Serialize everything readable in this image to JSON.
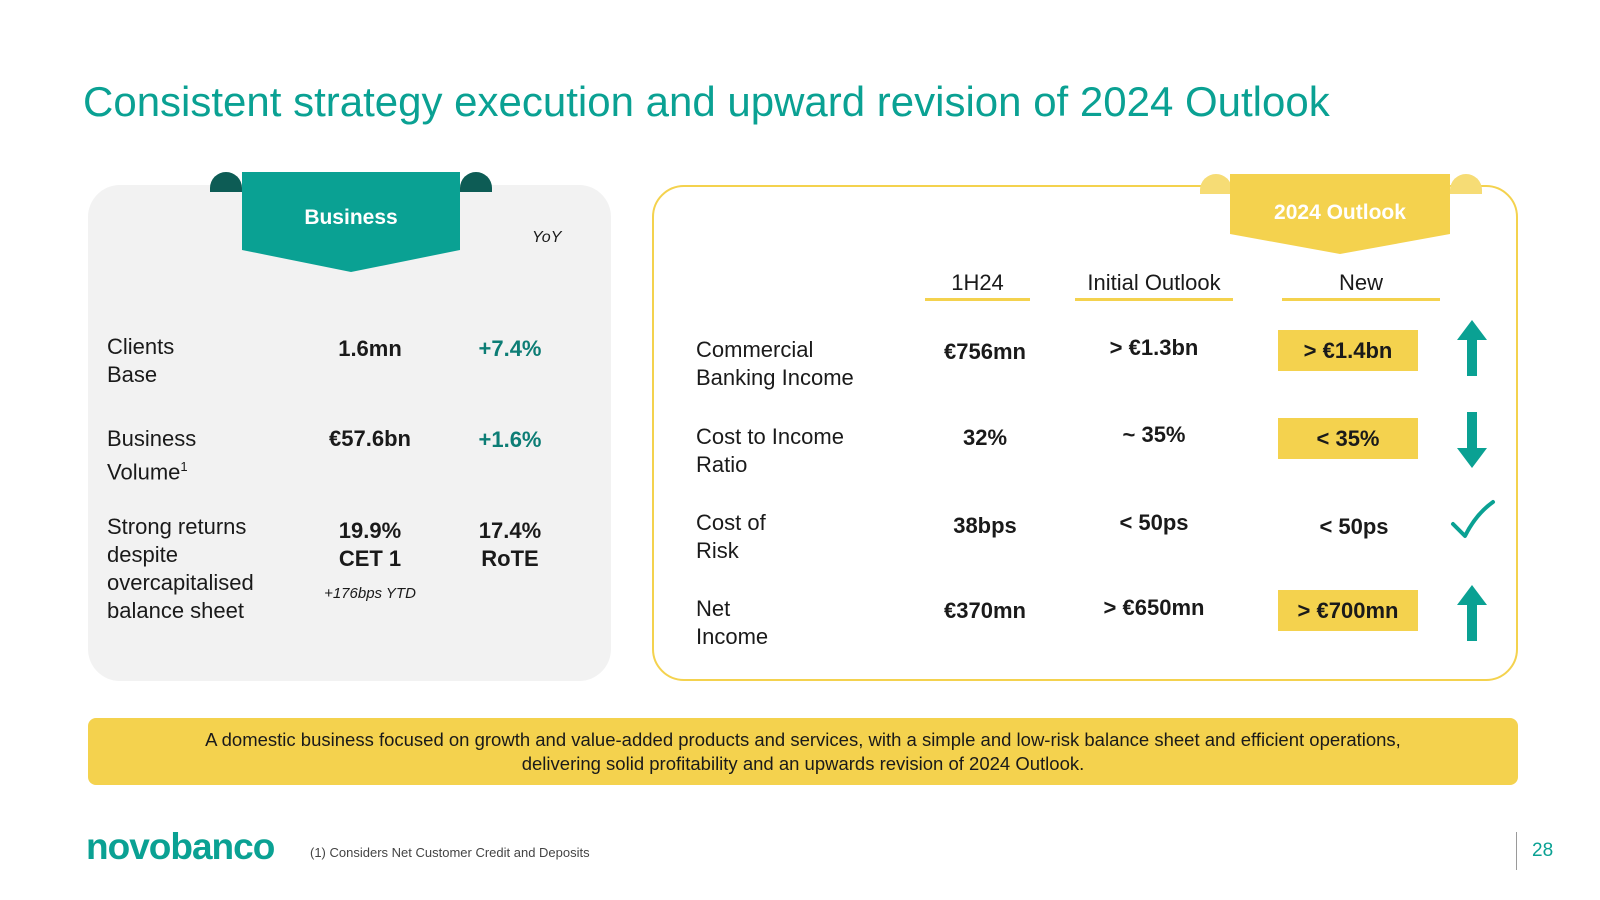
{
  "title": "Consistent strategy execution and upward revision of 2024 Outlook",
  "business": {
    "tab_label": "Business",
    "yoy_label": "YoY",
    "rows": [
      {
        "label_1": "Clients",
        "label_2": "Base",
        "value": "1.6mn",
        "yoy": "+7.4%"
      },
      {
        "label_1": "Business",
        "label_2": "Volume",
        "footnote_mark": "1",
        "value": "€57.6bn",
        "yoy": "+1.6%"
      },
      {
        "label_lines": [
          "Strong returns",
          "despite",
          "overcapitalised",
          "balance sheet"
        ],
        "value_1": "19.9%",
        "value_2": "CET 1",
        "value_sub": "+176bps YTD",
        "yoy_1": "17.4%",
        "yoy_2": "RoTE"
      }
    ]
  },
  "outlook": {
    "tab_label": "2024 Outlook",
    "columns": [
      "1H24",
      "Initial Outlook",
      "New"
    ],
    "rows": [
      {
        "label_1": "Commercial",
        "label_2": "Banking Income",
        "h1": "€756mn",
        "initial": "> €1.3bn",
        "new": "> €1.4bn",
        "highlighted": true,
        "icon": "arrow-up-icon"
      },
      {
        "label_1": "Cost to Income",
        "label_2": "Ratio",
        "h1": "32%",
        "initial": "~ 35%",
        "new": "< 35%",
        "highlighted": true,
        "icon": "arrow-down-icon"
      },
      {
        "label_1": "Cost of",
        "label_2": "Risk",
        "h1": "38bps",
        "initial": "< 50ps",
        "new": "< 50ps",
        "highlighted": false,
        "icon": "checkmark-icon"
      },
      {
        "label_1": "Net",
        "label_2": "Income",
        "h1": "€370mn",
        "initial": "> €650mn",
        "new": "> €700mn",
        "highlighted": true,
        "icon": "arrow-up-icon"
      }
    ]
  },
  "banner": {
    "line_1": "A domestic business focused on growth and value-added products and services, with a simple and low-risk balance sheet and efficient operations,",
    "line_2": "delivering solid profitability and an upwards revision of 2024 Outlook."
  },
  "footer": {
    "logo": "novobanco",
    "footnote": "(1) Considers Net Customer Credit and Deposits",
    "page_number": "28"
  },
  "colors": {
    "teal": "#0aa193",
    "dark_teal": "#0d5c55",
    "yellow": "#f4d24e",
    "panel_gray": "#f2f2f2"
  }
}
